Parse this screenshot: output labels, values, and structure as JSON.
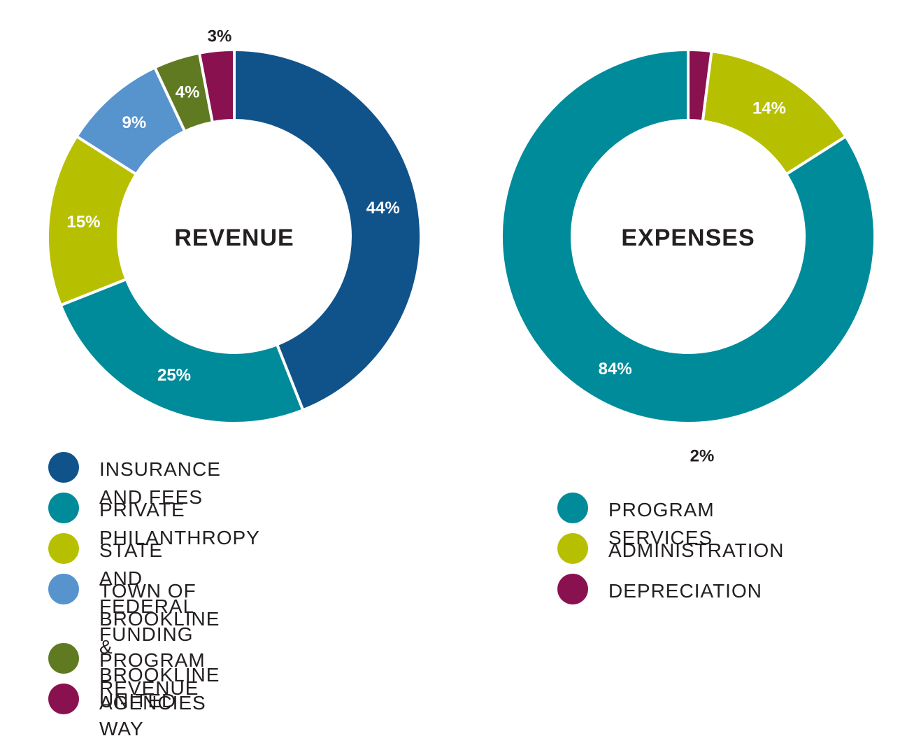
{
  "chart_data": [
    {
      "type": "pie",
      "title": "REVENUE",
      "slices": [
        {
          "label": "INSURANCE AND FEES",
          "value": 44,
          "display": "44%",
          "color": "#10538b"
        },
        {
          "label": "PRIVATE PHILANTHROPY",
          "value": 25,
          "display": "25%",
          "color": "#008b9a"
        },
        {
          "label": "STATE AND FEDERAL FUNDING",
          "value": 15,
          "display": "15%",
          "color": "#b7c000"
        },
        {
          "label": "TOWN OF BROOKLINE\n& BROOKLINE AGENCIES",
          "value": 9,
          "display": "9%",
          "color": "#5793cd"
        },
        {
          "label": "PROGRAM REVENUE",
          "value": 4,
          "display": "4%",
          "color": "#5f7a21"
        },
        {
          "label": "UNITED WAY",
          "value": 3,
          "display": "3%",
          "color": "#8a1150"
        }
      ],
      "legend": "bottom"
    },
    {
      "type": "pie",
      "title": "EXPENSES",
      "slices": [
        {
          "label": "PROGRAM SERVICES",
          "value": 84,
          "display": "84%",
          "color": "#008b9a"
        },
        {
          "label": "ADMINISTRATION",
          "value": 14,
          "display": "14%",
          "color": "#b7c000"
        },
        {
          "label": "DEPRECIATION",
          "value": 2,
          "display": "2%",
          "color": "#8a1150"
        }
      ],
      "legend": "bottom"
    }
  ]
}
